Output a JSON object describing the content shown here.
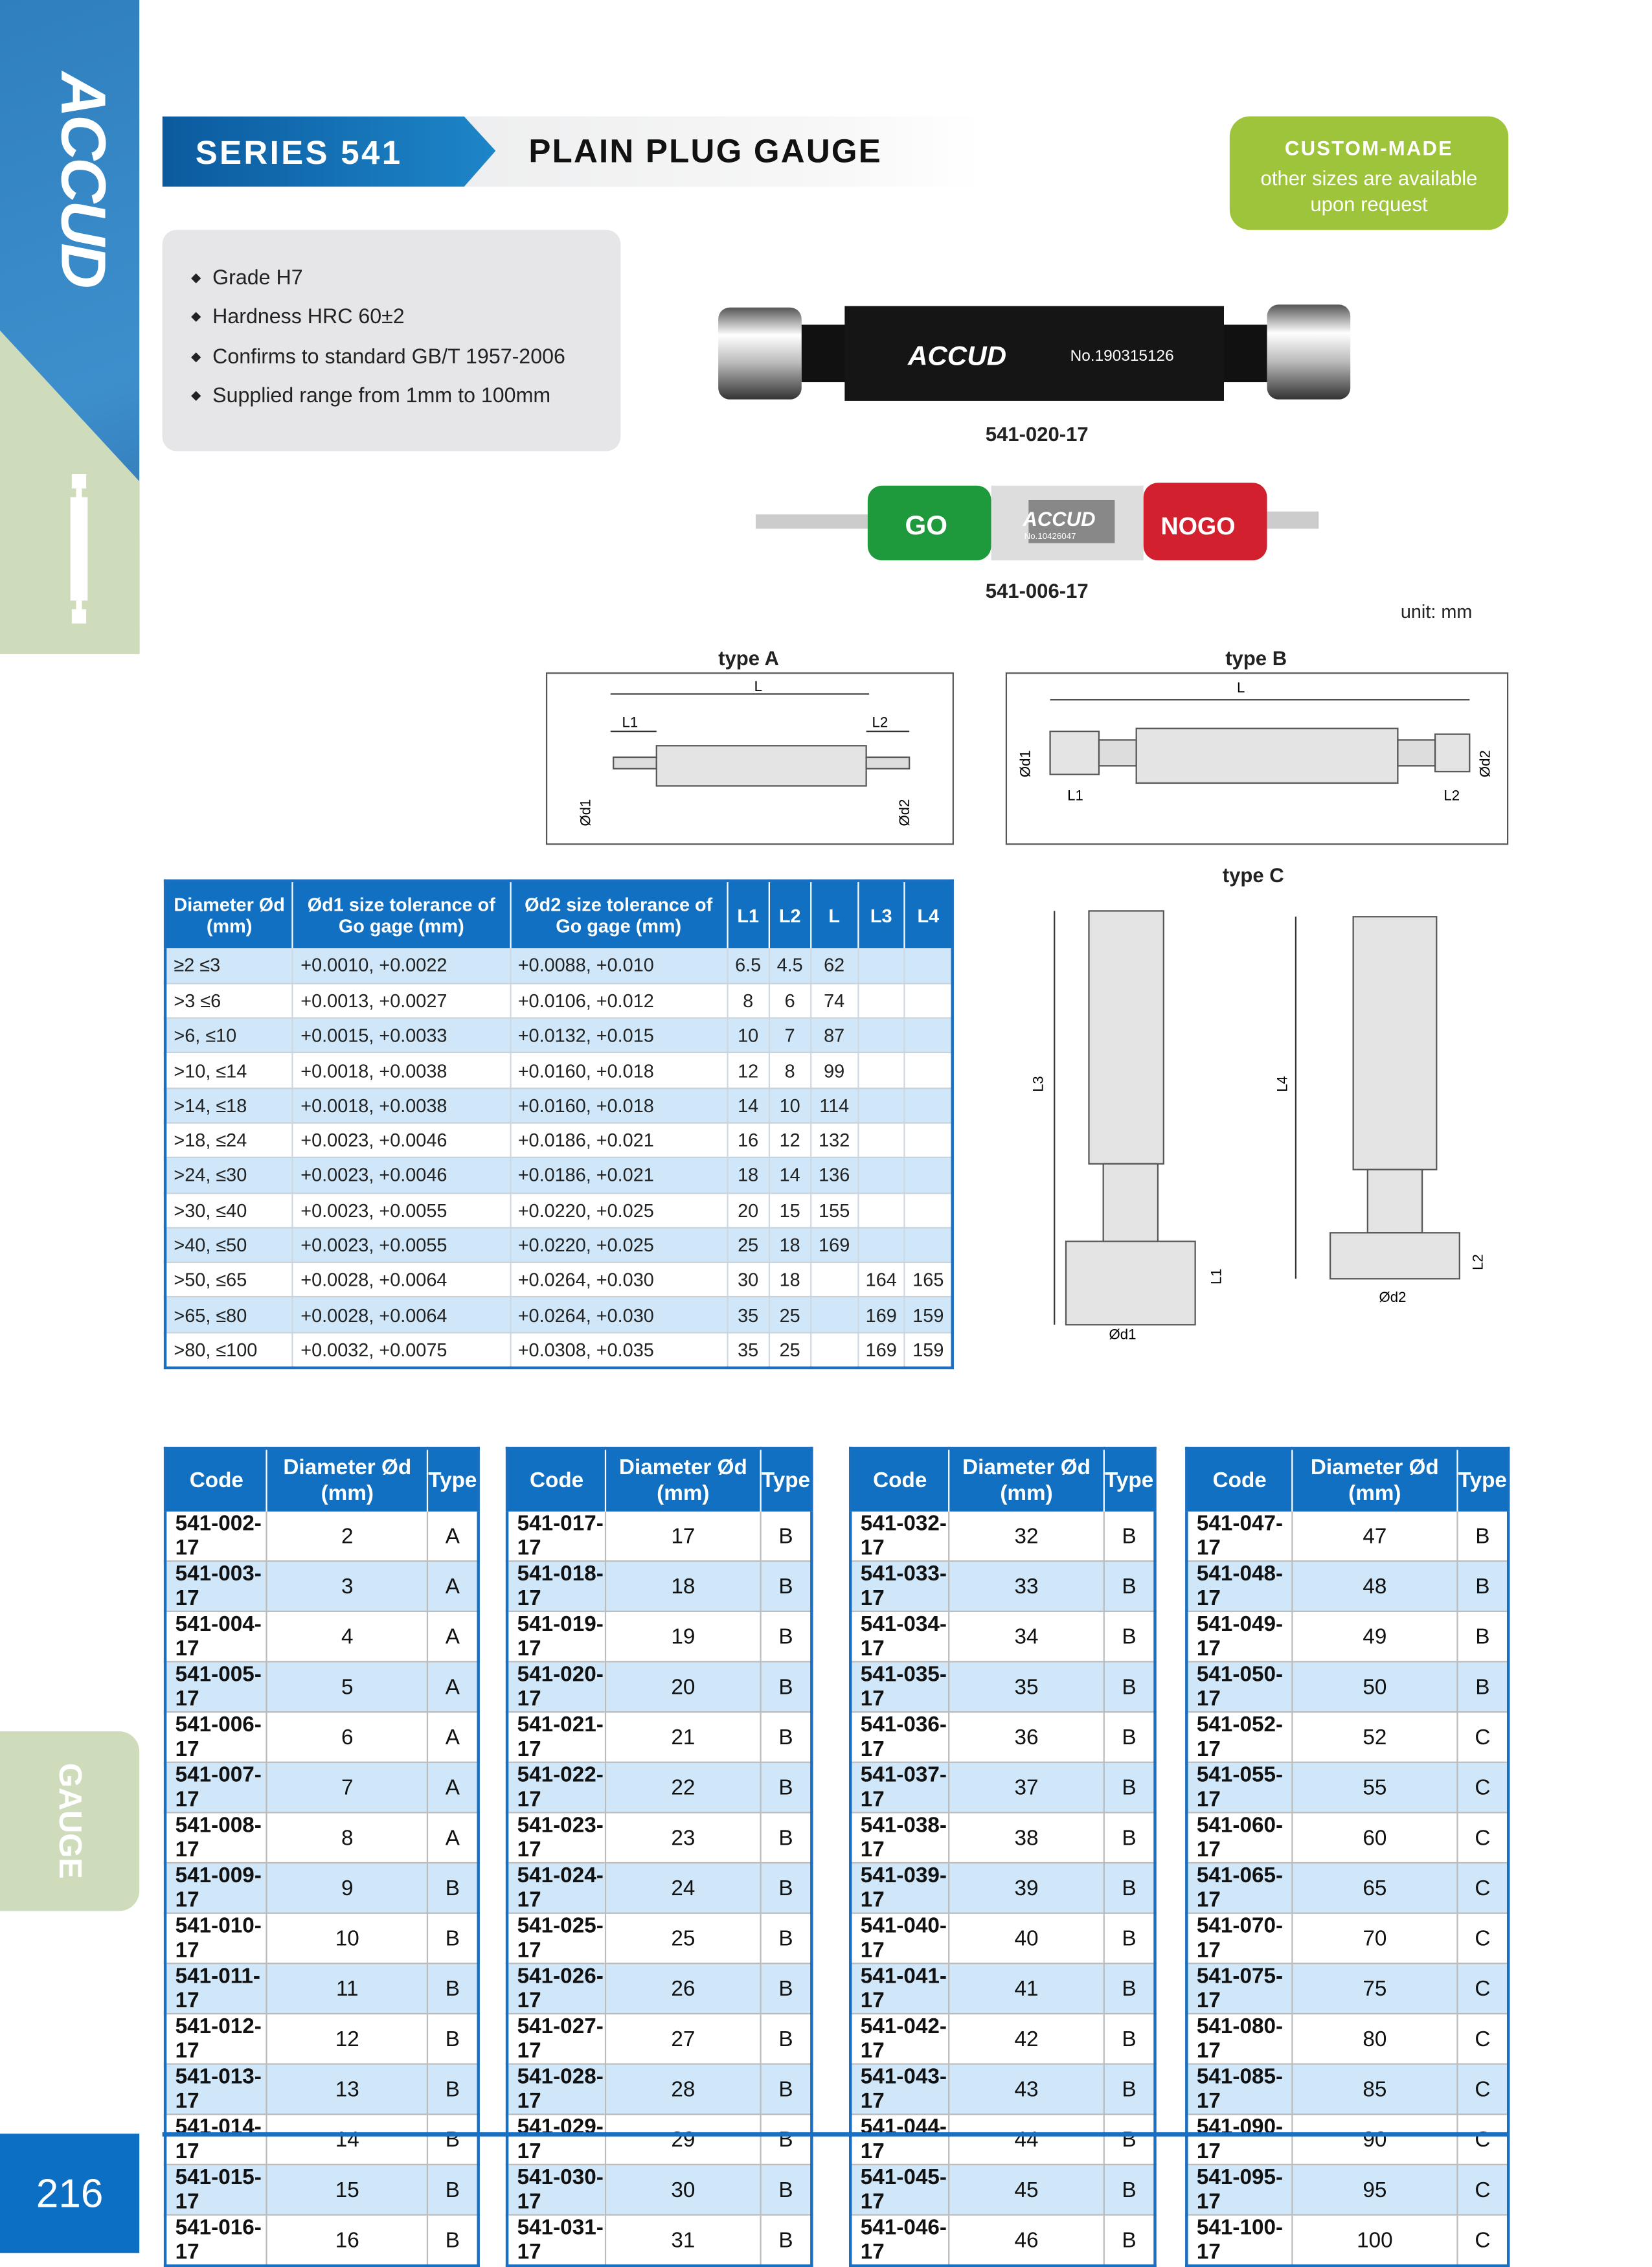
{
  "brand": "ACCUD",
  "side_tab": "GAUGE",
  "page_number": "216",
  "header": {
    "series": "SERIES 541",
    "title": "PLAIN PLUG GAUGE"
  },
  "custom": {
    "heading": "CUSTOM-MADE",
    "line1": "other sizes are available",
    "line2": "upon request"
  },
  "features": [
    "Grade H7",
    "Hardness HRC 60±2",
    "Confirms to standard GB/T 1957-2006",
    "Supplied range from 1mm to 100mm"
  ],
  "products": [
    {
      "code": "541-020-17",
      "brand": "ACCUD",
      "serial": "No.190315126"
    },
    {
      "code": "541-006-17",
      "brand": "ACCUD",
      "serial": "No.10426047",
      "go": "GO",
      "nogo": "NOGO"
    }
  ],
  "unit": "unit: mm",
  "diagrams": {
    "typeA": "type A",
    "typeB": "type B",
    "typeC": "type C",
    "L": "L",
    "L1": "L1",
    "L2": "L2",
    "L3": "L3",
    "L4": "L4",
    "d1": "Ød1",
    "d2": "Ød2"
  },
  "colors": {
    "blue": "#1170c2",
    "green": "#9dc43a",
    "row_alt": "#cfe7f8"
  },
  "spec_table": {
    "headers": [
      "Diameter Ød (mm)",
      "Ød1 size tolerance of Go gage (mm)",
      "Ød2 size tolerance of Go gage (mm)",
      "L1",
      "L2",
      "L",
      "L3",
      "L4"
    ],
    "rows": [
      [
        "≥2    ≤3",
        "+0.0010, +0.0022",
        "+0.0088, +0.010",
        "6.5",
        "4.5",
        "62",
        "",
        ""
      ],
      [
        ">3    ≤6",
        "+0.0013, +0.0027",
        "+0.0106, +0.012",
        "8",
        "6",
        "74",
        "",
        ""
      ],
      [
        ">6,   ≤10",
        "+0.0015, +0.0033",
        "+0.0132, +0.015",
        "10",
        "7",
        "87",
        "",
        ""
      ],
      [
        ">10, ≤14",
        "+0.0018, +0.0038",
        "+0.0160, +0.018",
        "12",
        "8",
        "99",
        "",
        ""
      ],
      [
        ">14, ≤18",
        "+0.0018, +0.0038",
        "+0.0160, +0.018",
        "14",
        "10",
        "114",
        "",
        ""
      ],
      [
        ">18, ≤24",
        "+0.0023, +0.0046",
        "+0.0186, +0.021",
        "16",
        "12",
        "132",
        "",
        ""
      ],
      [
        ">24, ≤30",
        "+0.0023, +0.0046",
        "+0.0186, +0.021",
        "18",
        "14",
        "136",
        "",
        ""
      ],
      [
        ">30, ≤40",
        "+0.0023, +0.0055",
        "+0.0220, +0.025",
        "20",
        "15",
        "155",
        "",
        ""
      ],
      [
        ">40, ≤50",
        "+0.0023, +0.0055",
        "+0.0220, +0.025",
        "25",
        "18",
        "169",
        "",
        ""
      ],
      [
        ">50, ≤65",
        "+0.0028, +0.0064",
        "+0.0264, +0.030",
        "30",
        "18",
        "",
        "164",
        "165"
      ],
      [
        ">65, ≤80",
        "+0.0028, +0.0064",
        "+0.0264, +0.030",
        "35",
        "25",
        "",
        "169",
        "159"
      ],
      [
        ">80, ≤100",
        "+0.0032, +0.0075",
        "+0.0308, +0.035",
        "35",
        "25",
        "",
        "169",
        "159"
      ]
    ]
  },
  "code_tables": {
    "headers": [
      "Code",
      "Diameter Ød (mm)",
      "Type"
    ],
    "tables": [
      [
        [
          "541-002-17",
          "2",
          "A"
        ],
        [
          "541-003-17",
          "3",
          "A"
        ],
        [
          "541-004-17",
          "4",
          "A"
        ],
        [
          "541-005-17",
          "5",
          "A"
        ],
        [
          "541-006-17",
          "6",
          "A"
        ],
        [
          "541-007-17",
          "7",
          "A"
        ],
        [
          "541-008-17",
          "8",
          "A"
        ],
        [
          "541-009-17",
          "9",
          "B"
        ],
        [
          "541-010-17",
          "10",
          "B"
        ],
        [
          "541-011-17",
          "11",
          "B"
        ],
        [
          "541-012-17",
          "12",
          "B"
        ],
        [
          "541-013-17",
          "13",
          "B"
        ],
        [
          "541-014-17",
          "14",
          "B"
        ],
        [
          "541-015-17",
          "15",
          "B"
        ],
        [
          "541-016-17",
          "16",
          "B"
        ]
      ],
      [
        [
          "541-017-17",
          "17",
          "B"
        ],
        [
          "541-018-17",
          "18",
          "B"
        ],
        [
          "541-019-17",
          "19",
          "B"
        ],
        [
          "541-020-17",
          "20",
          "B"
        ],
        [
          "541-021-17",
          "21",
          "B"
        ],
        [
          "541-022-17",
          "22",
          "B"
        ],
        [
          "541-023-17",
          "23",
          "B"
        ],
        [
          "541-024-17",
          "24",
          "B"
        ],
        [
          "541-025-17",
          "25",
          "B"
        ],
        [
          "541-026-17",
          "26",
          "B"
        ],
        [
          "541-027-17",
          "27",
          "B"
        ],
        [
          "541-028-17",
          "28",
          "B"
        ],
        [
          "541-029-17",
          "29",
          "B"
        ],
        [
          "541-030-17",
          "30",
          "B"
        ],
        [
          "541-031-17",
          "31",
          "B"
        ]
      ],
      [
        [
          "541-032-17",
          "32",
          "B"
        ],
        [
          "541-033-17",
          "33",
          "B"
        ],
        [
          "541-034-17",
          "34",
          "B"
        ],
        [
          "541-035-17",
          "35",
          "B"
        ],
        [
          "541-036-17",
          "36",
          "B"
        ],
        [
          "541-037-17",
          "37",
          "B"
        ],
        [
          "541-038-17",
          "38",
          "B"
        ],
        [
          "541-039-17",
          "39",
          "B"
        ],
        [
          "541-040-17",
          "40",
          "B"
        ],
        [
          "541-041-17",
          "41",
          "B"
        ],
        [
          "541-042-17",
          "42",
          "B"
        ],
        [
          "541-043-17",
          "43",
          "B"
        ],
        [
          "541-044-17",
          "44",
          "B"
        ],
        [
          "541-045-17",
          "45",
          "B"
        ],
        [
          "541-046-17",
          "46",
          "B"
        ]
      ],
      [
        [
          "541-047-17",
          "47",
          "B"
        ],
        [
          "541-048-17",
          "48",
          "B"
        ],
        [
          "541-049-17",
          "49",
          "B"
        ],
        [
          "541-050-17",
          "50",
          "B"
        ],
        [
          "541-052-17",
          "52",
          "C"
        ],
        [
          "541-055-17",
          "55",
          "C"
        ],
        [
          "541-060-17",
          "60",
          "C"
        ],
        [
          "541-065-17",
          "65",
          "C"
        ],
        [
          "541-070-17",
          "70",
          "C"
        ],
        [
          "541-075-17",
          "75",
          "C"
        ],
        [
          "541-080-17",
          "80",
          "C"
        ],
        [
          "541-085-17",
          "85",
          "C"
        ],
        [
          "541-090-17",
          "90",
          "C"
        ],
        [
          "541-095-17",
          "95",
          "C"
        ],
        [
          "541-100-17",
          "100",
          "C"
        ]
      ]
    ]
  }
}
